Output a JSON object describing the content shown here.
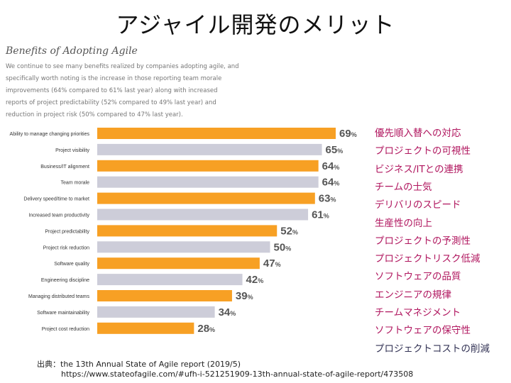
{
  "header": {
    "title": "アジャイル開発のメリット"
  },
  "report": {
    "heading": "Benefits of Adopting Agile",
    "paragraph": "We continue to see many benefits realized by companies adopting agile, and specifically worth noting is the increase in those reporting team morale improvements (64% compared to 61% last year) along with increased reports of project predictability (52% compared to 49% last year) and reduction in project risk (50% compared to 47% last year)."
  },
  "chart_data": {
    "type": "bar",
    "orientation": "horizontal",
    "categories": [
      "Ability to manage changing priorities",
      "Project visibility",
      "Business/IT alignment",
      "Team morale",
      "Delivery speed/time to market",
      "Increased team productivity",
      "Project predictability",
      "Project risk reduction",
      "Software quality",
      "Engineering discipline",
      "Managing distributed teams",
      "Software maintainability",
      "Project cost reduction"
    ],
    "values": [
      69,
      65,
      64,
      64,
      63,
      61,
      52,
      50,
      47,
      42,
      39,
      34,
      28
    ],
    "value_suffix": "%",
    "bar_colors": [
      "orange",
      "gray",
      "orange",
      "gray",
      "orange",
      "gray",
      "orange",
      "gray",
      "orange",
      "gray",
      "orange",
      "gray",
      "orange"
    ],
    "xlim": [
      0,
      100
    ]
  },
  "translations": {
    "labels": [
      "優先順入替への対応",
      "プロジェクトの可視性",
      "ビジネス/ITとの連携",
      "チームの士気",
      "デリバリのスピード",
      "生産性の向上",
      "プロジェクトの予測性",
      "プロジェクトリスク低減",
      "ソフトウェアの品質",
      "エンジニアの規律",
      "チームマネジメント",
      "ソフトウェアの保守性",
      "プロジェクトコストの削減"
    ],
    "colors": [
      "purple",
      "purple",
      "purple",
      "purple",
      "purple",
      "purple",
      "purple",
      "purple",
      "purple",
      "purple",
      "purple",
      "purple",
      "navy"
    ]
  },
  "colors": {
    "orange": "#F7A024",
    "gray": "#CDCDD9",
    "purple": "#B0155E",
    "navy": "#333355",
    "category_text": "#333333",
    "value_text": "#555555"
  },
  "source": {
    "line1": "出典：the 13th Annual State of Agile report (2019/5)",
    "line2": "https://www.stateofagile.com/#ufh-i-521251909-13th-annual-state-of-agile-report/473508"
  }
}
